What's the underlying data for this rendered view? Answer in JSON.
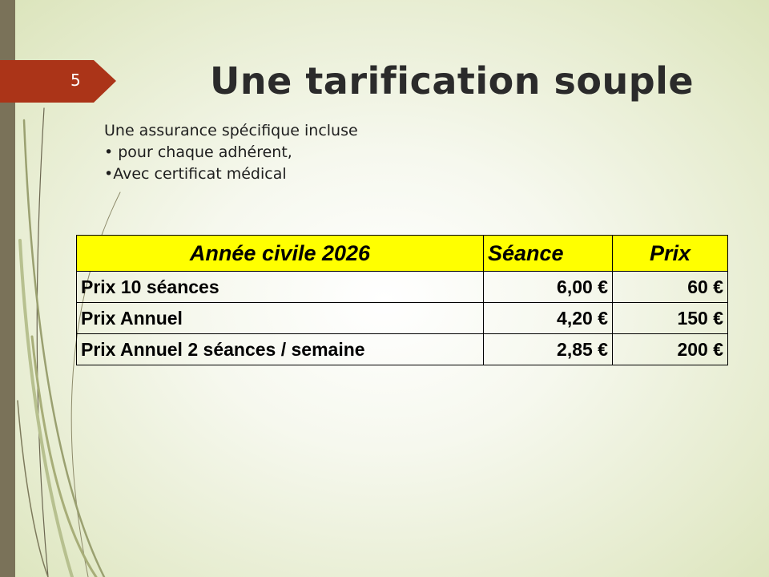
{
  "slide": {
    "number": "5",
    "title": "Une tarification souple",
    "body_lines": [
      "Une assurance spécifique incluse",
      "• pour chaque adhérent,",
      "•Avec certificat médical"
    ]
  },
  "table": {
    "headers": [
      "Année civile 2026",
      "Séance",
      "Prix"
    ],
    "rows": [
      [
        "Prix 10 séances",
        "6,00 €",
        "60 €"
      ],
      [
        "Prix Annuel",
        "4,20 €",
        "150 €"
      ],
      [
        "Prix Annuel 2 séances / semaine",
        "2,85 €",
        "200 €"
      ]
    ],
    "header_color": "#ffff00"
  },
  "colors": {
    "accent_tab": "#ab3418",
    "left_bar": "#7a7259"
  }
}
